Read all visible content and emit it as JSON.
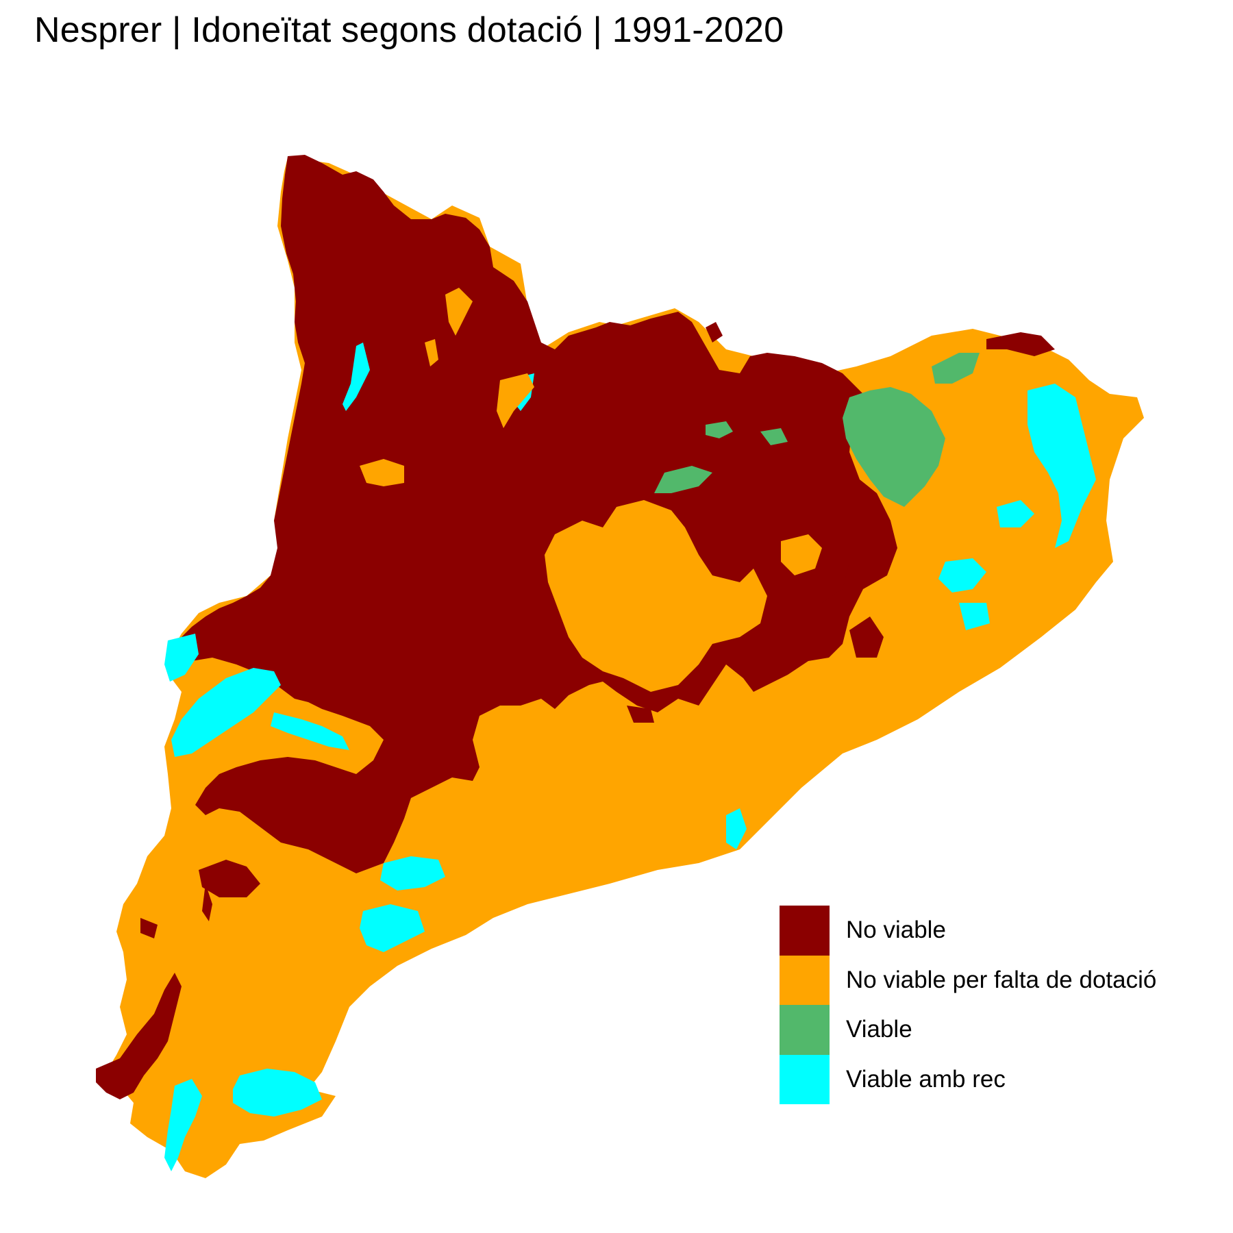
{
  "title": "Nesprer | Idoneïtat segons dotació | 1991-2020",
  "colors": {
    "no_viable": "#8b0000",
    "no_viable_dotacio": "#ffa500",
    "viable": "#52b86b",
    "viable_rec": "#00ffff"
  },
  "legend": {
    "items": [
      {
        "label": "No viable",
        "color": "#8b0000"
      },
      {
        "label": "No viable per falta de dotació",
        "color": "#ffa500"
      },
      {
        "label": "Viable",
        "color": "#52b86b"
      },
      {
        "label": "Viable amb rec",
        "color": "#00ffff"
      }
    ]
  }
}
